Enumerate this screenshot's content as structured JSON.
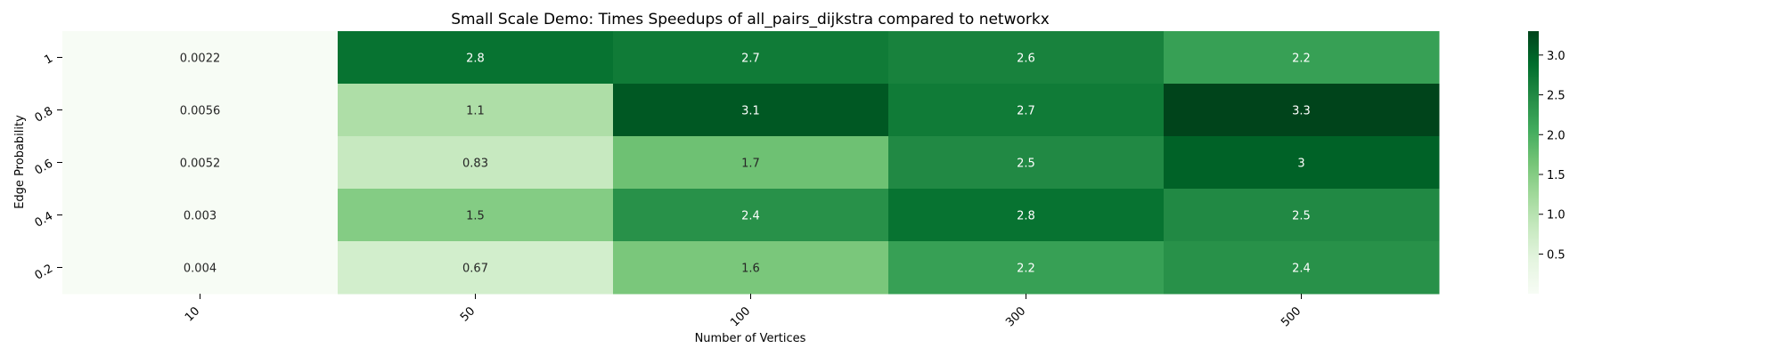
{
  "chart_data": {
    "type": "heatmap",
    "title": "Small Scale Demo: Times Speedups of all_pairs_dijkstra compared to networkx",
    "xlabel": "Number of Vertices",
    "ylabel": "Edge Probability",
    "x_categories": [
      "10",
      "50",
      "100",
      "300",
      "500"
    ],
    "y_categories": [
      "1",
      "0.8",
      "0.6",
      "0.4",
      "0.2"
    ],
    "values": [
      [
        0.0022,
        2.8,
        2.7,
        2.6,
        2.2
      ],
      [
        0.0056,
        1.1,
        3.1,
        2.7,
        3.3
      ],
      [
        0.0052,
        0.83,
        1.7,
        2.5,
        3
      ],
      [
        0.003,
        1.5,
        2.4,
        2.8,
        2.5
      ],
      [
        0.004,
        0.67,
        1.6,
        2.2,
        2.4
      ]
    ],
    "cell_labels": [
      [
        "0.0022",
        "2.8",
        "2.7",
        "2.6",
        "2.2"
      ],
      [
        "0.0056",
        "1.1",
        "3.1",
        "2.7",
        "3.3"
      ],
      [
        "0.0052",
        "0.83",
        "1.7",
        "2.5",
        "3"
      ],
      [
        "0.003",
        "1.5",
        "2.4",
        "2.8",
        "2.5"
      ],
      [
        "0.004",
        "0.67",
        "1.6",
        "2.2",
        "2.4"
      ]
    ],
    "colorbar": {
      "min": 0.0022,
      "max": 3.3,
      "ticks": [
        0.5,
        1.0,
        1.5,
        2.0,
        2.5,
        3.0
      ],
      "tick_labels": [
        "0.5",
        "1.0",
        "1.5",
        "2.0",
        "2.5",
        "3.0"
      ],
      "colormap": "Greens"
    },
    "grid": false,
    "legend": "colorbar-right"
  }
}
